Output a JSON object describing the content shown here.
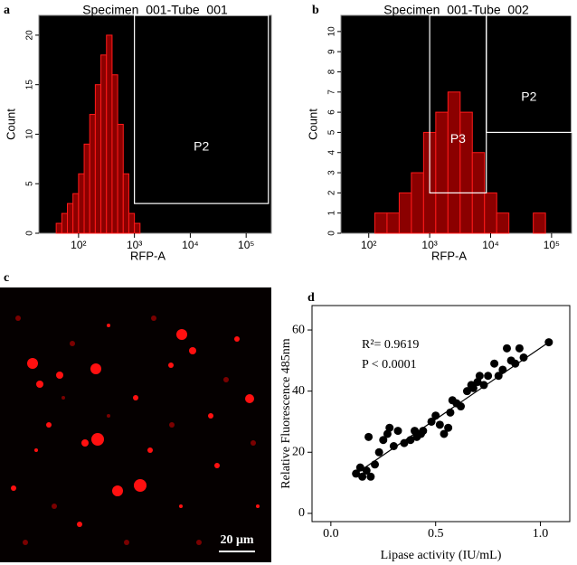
{
  "chart_data": [
    {
      "type": "histogram",
      "panel_label": "a",
      "title": "Specimen_001-Tube_001",
      "x_label": "RFP-A",
      "y_label": "Count",
      "log_x": true,
      "color": "#8b0000",
      "edge_color": "#ff1a1a",
      "background": "#000000",
      "bins": [
        31.6,
        39.8,
        50.1,
        63.1,
        79.4,
        100,
        125.9,
        158.5,
        199.5,
        251.2,
        316.2,
        398.1,
        501.2,
        631,
        794.3,
        1000,
        1258.9
      ],
      "counts": [
        0,
        1,
        2,
        3,
        4,
        6,
        9,
        12,
        15,
        18,
        20,
        16,
        11,
        6,
        2,
        1
      ],
      "xlim": [
        19.5,
        282000
      ],
      "ylim": [
        0,
        22
      ],
      "xticks": [
        {
          "value": 100,
          "label": "10²"
        },
        {
          "value": 1000,
          "label": "10³"
        },
        {
          "value": 10000,
          "label": "10⁴"
        },
        {
          "value": 100000,
          "label": "10⁵"
        }
      ],
      "yticks": [
        0,
        5,
        10,
        15,
        20
      ],
      "gates": [
        {
          "name": "P2",
          "x": [
            1000,
            250000
          ],
          "y": [
            3,
            22
          ]
        }
      ]
    },
    {
      "type": "histogram",
      "panel_label": "b",
      "title": "Specimen_001-Tube_002",
      "x_label": "RFP-A",
      "y_label": "Count",
      "log_x": true,
      "color": "#8b0000",
      "edge_color": "#ff1a1a",
      "background": "#000000",
      "bins": [
        31.6,
        50.1,
        79.4,
        125.9,
        199.5,
        316.2,
        501.2,
        794.3,
        1258.9,
        1995.3,
        3162.3,
        5011.9,
        7943.3,
        12589,
        19953,
        31623,
        50119,
        79433,
        125893
      ],
      "counts": [
        0,
        0,
        0,
        1,
        1,
        2,
        3,
        5,
        6,
        7,
        6,
        4,
        2,
        1,
        0,
        0,
        1,
        0
      ],
      "xlim": [
        35,
        213000
      ],
      "ylim": [
        0,
        10.8
      ],
      "xticks": [
        {
          "value": 100,
          "label": "10²"
        },
        {
          "value": 1000,
          "label": "10³"
        },
        {
          "value": 10000,
          "label": "10⁴"
        },
        {
          "value": 100000,
          "label": "10⁵"
        }
      ],
      "yticks": [
        0,
        1,
        2,
        3,
        4,
        5,
        6,
        7,
        8,
        9,
        10
      ],
      "gates": [
        {
          "name": "P3",
          "x": [
            1000,
            8500
          ],
          "y": [
            2,
            10.8
          ]
        },
        {
          "name": "P2",
          "x": [
            8500,
            213000
          ],
          "y": [
            5,
            10.8
          ]
        }
      ]
    },
    {
      "type": "scatter",
      "panel_label": "d",
      "x_label": "Lipase activity (IU/mL)",
      "y_label": "Relative Fluorescence 485nm",
      "color": "#000000",
      "x": [
        0.12,
        0.14,
        0.15,
        0.17,
        0.18,
        0.19,
        0.21,
        0.23,
        0.25,
        0.27,
        0.28,
        0.3,
        0.32,
        0.35,
        0.38,
        0.4,
        0.41,
        0.43,
        0.44,
        0.48,
        0.5,
        0.52,
        0.54,
        0.56,
        0.57,
        0.58,
        0.6,
        0.62,
        0.65,
        0.67,
        0.68,
        0.7,
        0.71,
        0.73,
        0.75,
        0.78,
        0.8,
        0.82,
        0.84,
        0.86,
        0.88,
        0.9,
        0.92,
        1.04
      ],
      "values": [
        13,
        15,
        12,
        14,
        25,
        12,
        16,
        20,
        24,
        26,
        28,
        22,
        27,
        23,
        24,
        27,
        25,
        26,
        27,
        30,
        32,
        29,
        26,
        28,
        33,
        37,
        36,
        35,
        40,
        42,
        41,
        43,
        45,
        42,
        45,
        49,
        45,
        47,
        54,
        50,
        49,
        54,
        51,
        56
      ],
      "fit": {
        "x": [
          0.12,
          1.04
        ],
        "y": [
          13,
          56
        ]
      },
      "xlim": [
        -0.09,
        1.14
      ],
      "ylim": [
        -2.7,
        68
      ],
      "xticks": [
        {
          "value": 0,
          "label": "0.0"
        },
        0.5,
        {
          "value": 1,
          "label": "1.0"
        }
      ],
      "yticks": [
        0,
        20,
        40,
        60
      ],
      "annotations": [
        "R²= 0.9619",
        "P < 0.0001"
      ]
    }
  ],
  "micrograph": {
    "panel_label": "c",
    "scale_bar": "20 μm"
  }
}
